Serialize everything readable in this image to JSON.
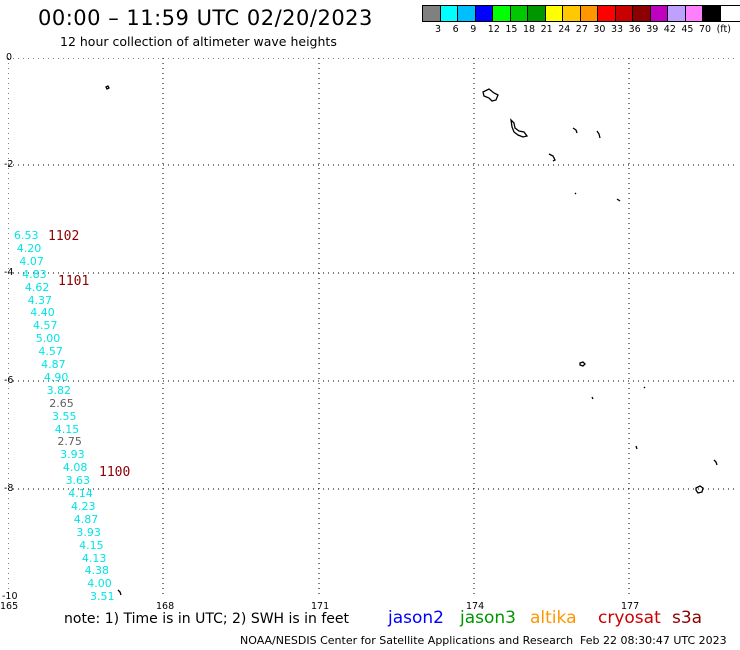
{
  "header": {
    "title": "00:00 – 11:59 UTC 02/20/2023",
    "subtitle": "12 hour collection of altimeter wave heights"
  },
  "legend": {
    "colors": [
      "#808080",
      "#00ffff",
      "#00bfff",
      "#0000ff",
      "#00ff00",
      "#00c800",
      "#009600",
      "#ffff00",
      "#ffc800",
      "#ff9600",
      "#ff0000",
      "#c80000",
      "#8b0000",
      "#c000c0",
      "#c0a0ff",
      "#ff80ff",
      "#000000"
    ],
    "labels": [
      "3",
      "6",
      "9",
      "12",
      "15",
      "18",
      "21",
      "24",
      "27",
      "30",
      "33",
      "36",
      "39",
      "42",
      "45",
      "70",
      "(ft)"
    ]
  },
  "axes": {
    "y_ticks": [
      "0",
      "-2",
      "-4",
      "-6",
      "-8",
      "-10"
    ],
    "x_ticks": [
      "165",
      "168",
      "171",
      "174",
      "177"
    ]
  },
  "observations": [
    {
      "value": "6.53",
      "color": "#00e5e5"
    },
    {
      "value": "4.20",
      "color": "#00e5e5"
    },
    {
      "value": "4.07",
      "color": "#00e5e5"
    },
    {
      "value": "4.83",
      "color": "#00e5e5"
    },
    {
      "value": "4.62",
      "color": "#00e5e5"
    },
    {
      "value": "4.37",
      "color": "#00e5e5"
    },
    {
      "value": "4.40",
      "color": "#00e5e5"
    },
    {
      "value": "4.57",
      "color": "#00e5e5"
    },
    {
      "value": "5.00",
      "color": "#00e5e5"
    },
    {
      "value": "4.57",
      "color": "#00e5e5"
    },
    {
      "value": "4.87",
      "color": "#00e5e5"
    },
    {
      "value": "4.90",
      "color": "#00e5e5"
    },
    {
      "value": "3.82",
      "color": "#00e5e5"
    },
    {
      "value": "2.65",
      "color": "#606060"
    },
    {
      "value": "3.55",
      "color": "#00e5e5"
    },
    {
      "value": "4.15",
      "color": "#00e5e5"
    },
    {
      "value": "2.75",
      "color": "#606060"
    },
    {
      "value": "3.93",
      "color": "#00e5e5"
    },
    {
      "value": "4.08",
      "color": "#00e5e5"
    },
    {
      "value": "3.63",
      "color": "#00e5e5"
    },
    {
      "value": "4.14",
      "color": "#00e5e5"
    },
    {
      "value": "4.23",
      "color": "#00e5e5"
    },
    {
      "value": "4.87",
      "color": "#00e5e5"
    },
    {
      "value": "3.93",
      "color": "#00e5e5"
    },
    {
      "value": "4.15",
      "color": "#00e5e5"
    },
    {
      "value": "4.13",
      "color": "#00e5e5"
    },
    {
      "value": "4.38",
      "color": "#00e5e5"
    },
    {
      "value": "4.00",
      "color": "#00e5e5"
    },
    {
      "value": "3.51",
      "color": "#00e5e5"
    }
  ],
  "buoys": [
    "1102",
    "1101",
    "1100"
  ],
  "note": "note: 1) Time is in UTC; 2) SWH is in feet",
  "satellites": [
    {
      "name": "jason2",
      "color": "#0000ff"
    },
    {
      "name": "jason3",
      "color": "#009600"
    },
    {
      "name": "altika",
      "color": "#ff9600"
    },
    {
      "name": "cryosat",
      "color": "#cc0000"
    },
    {
      "name": "s3a",
      "color": "#8b0000"
    }
  ],
  "footer": {
    "source": "NOAA/NESDIS Center for Satellite Applications and Research",
    "generated": "Feb 22 08:30:47 UTC 2023"
  }
}
